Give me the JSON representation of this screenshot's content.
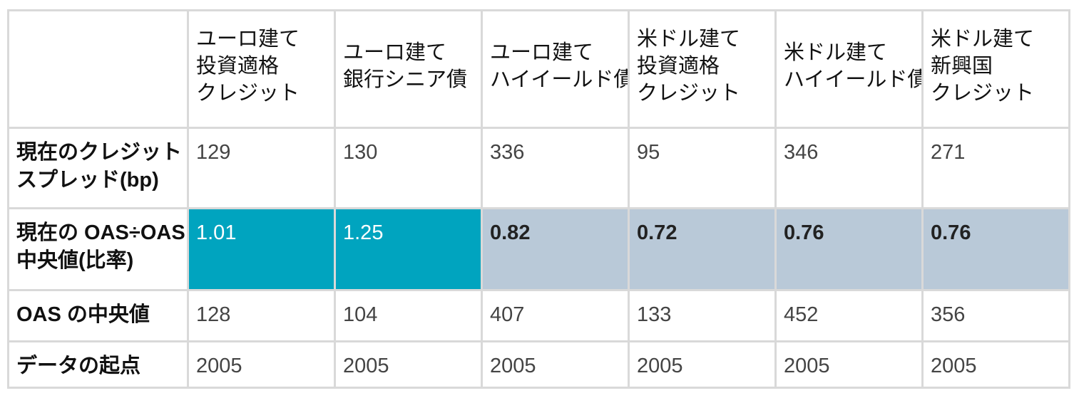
{
  "table": {
    "corner": "",
    "columns": [
      {
        "lines": [
          "ユーロ建て",
          "投資適格",
          "クレジット"
        ]
      },
      {
        "lines": [
          "ユーロ建て",
          "銀行シニア債"
        ]
      },
      {
        "lines": [
          "ユーロ建て",
          "ハイイールド債"
        ]
      },
      {
        "lines": [
          "米ドル建て",
          "投資適格",
          "クレジット"
        ]
      },
      {
        "lines": [
          "米ドル建て",
          "ハイイールド債"
        ]
      },
      {
        "lines": [
          "米ドル建て",
          "新興国",
          "クレジット"
        ]
      }
    ],
    "rows": [
      {
        "label_lines": [
          "現在のクレジット・",
          "スプレッド(bp)"
        ],
        "values": [
          "129",
          "130",
          "336",
          "95",
          "346",
          "271"
        ]
      },
      {
        "label_lines": [
          "現在の OAS÷OAS",
          "中央値(比率)"
        ],
        "values": [
          "1.01",
          "1.25",
          "0.82",
          "0.72",
          "0.76",
          "0.76"
        ],
        "highlight": [
          true,
          true,
          false,
          false,
          false,
          false
        ]
      },
      {
        "label_lines": [
          "OAS の中央値"
        ],
        "values": [
          "128",
          "104",
          "407",
          "133",
          "452",
          "356"
        ]
      },
      {
        "label_lines": [
          "データの起点"
        ],
        "values": [
          "2005",
          "2005",
          "2005",
          "2005",
          "2005",
          "2005"
        ]
      }
    ]
  },
  "colors": {
    "highlight_high": "#00a4bf",
    "highlight_low": "#b9c9d8",
    "grid": "#d9d9d9"
  }
}
